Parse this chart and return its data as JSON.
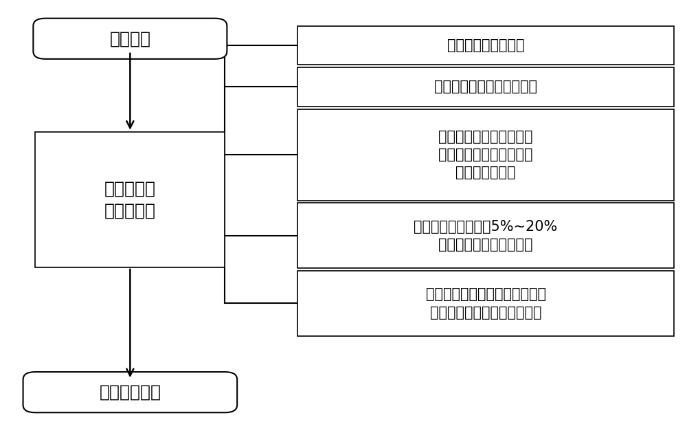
{
  "bg_color": "#ffffff",
  "line_color": "#000000",
  "text_color": "#000000",
  "font_size_main": 18,
  "font_size_small": 15,
  "start_label": "系统启动",
  "end_label": "硬盘上线完成",
  "middle_box_label": "坏扇区管理\n模块初始化",
  "right_boxes": [
    {
      "text": "向系统申请内存资源",
      "lines": 1
    },
    {
      "text": "创建和初始化坏扇区映射表",
      "lines": 1
    },
    {
      "text": "获取硬盘磁道和盘片数量\n并建立从逻辑地址到物理\n地址的映射关系",
      "lines": 3
    },
    {
      "text": "获取硬盘容量并截留5%~20%\n的硬盘空间作为预留扇区",
      "lines": 2
    },
    {
      "text": "获取硬盘配置信息并创建坏扇区\n预测因子和预测坏扇区映射表",
      "lines": 2
    }
  ],
  "figsize": [
    10.0,
    6.3
  ],
  "dpi": 100
}
